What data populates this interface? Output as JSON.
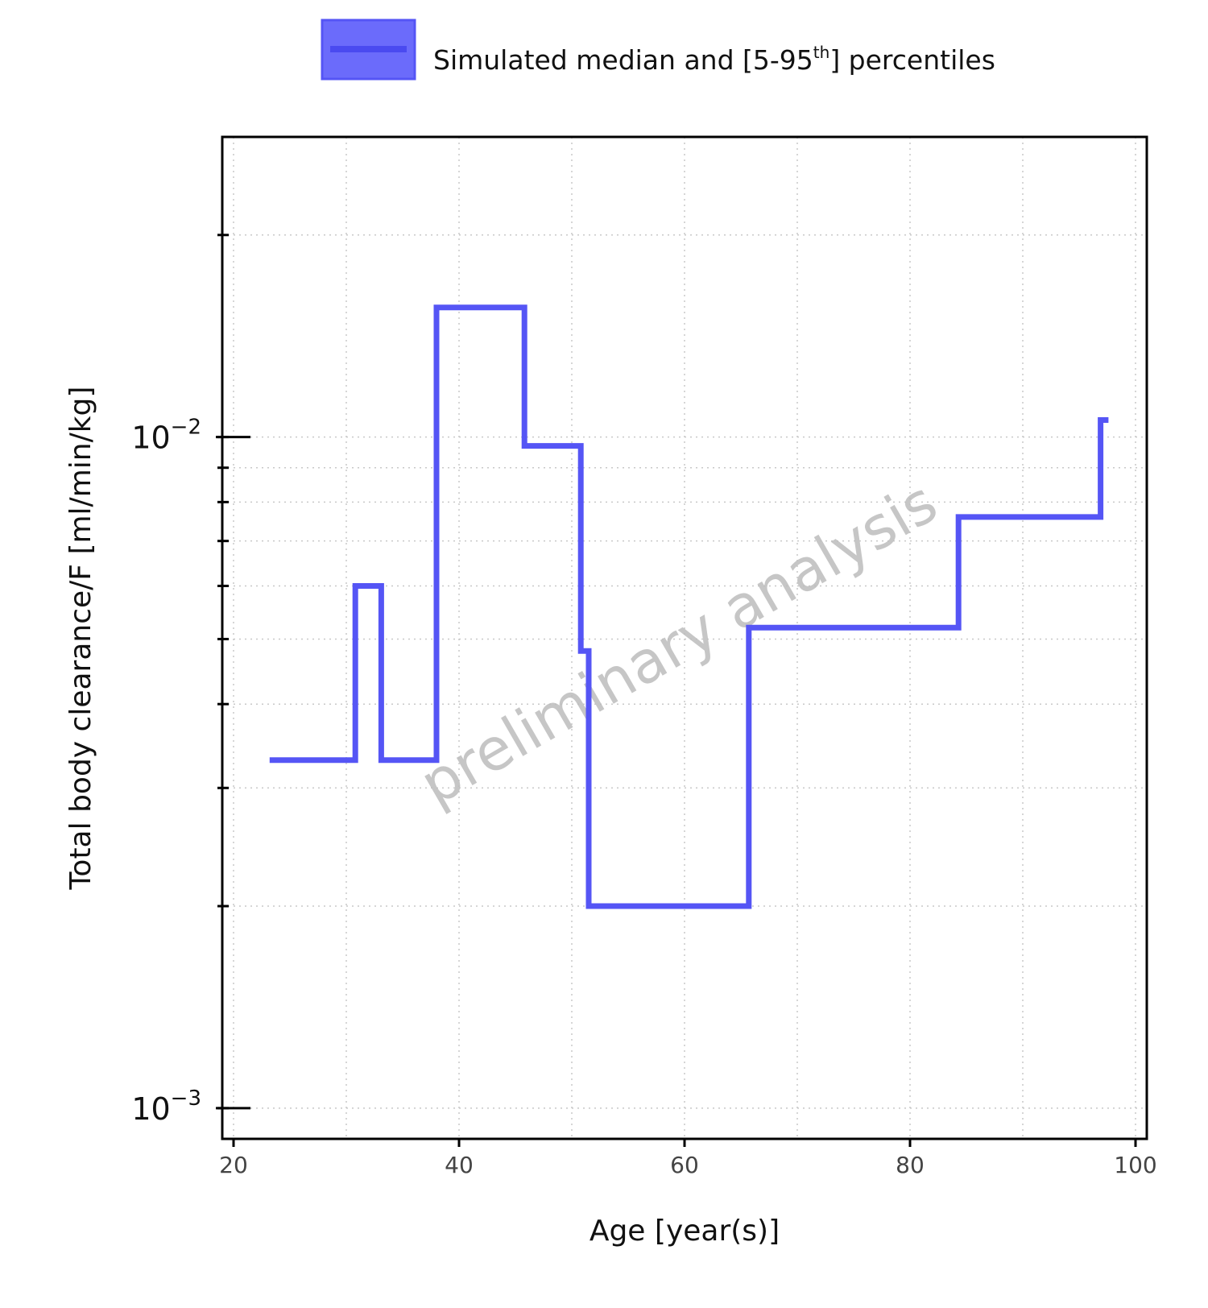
{
  "chart_data": {
    "type": "line",
    "step": true,
    "xlabel": "Age [year(s)]",
    "ylabel": "Total body clearance/F [ml/min/kg]",
    "xlim": [
      19,
      101
    ],
    "ylim": [
      0.0009,
      0.028
    ],
    "yscale": "log",
    "xticks": [
      20,
      40,
      60,
      80,
      100
    ],
    "xtick_labels": [
      "20",
      "40",
      "60",
      "80",
      "100"
    ],
    "yticks": [
      0.001,
      0.01
    ],
    "ytick_labels": [
      {
        "base": "10",
        "exp": "−3",
        "value": 0.001
      },
      {
        "base": "10",
        "exp": "−2",
        "value": 0.01
      }
    ],
    "grid": true,
    "legend": {
      "position": "top",
      "label_prefix": "Simulated median and [5-95",
      "label_sup": "th",
      "label_suffix": "] percentiles"
    },
    "watermark": "preliminary analysis",
    "color": "#5555f5",
    "series": [
      {
        "name": "Simulated median and [5-95th] percentiles",
        "x": [
          23.2,
          30.8,
          30.8,
          33.1,
          33.1,
          38.0,
          38.0,
          45.8,
          45.8,
          50.8,
          50.8,
          51.5,
          51.5,
          65.7,
          65.7,
          84.3,
          84.3,
          96.9,
          96.9,
          97.6
        ],
        "y": [
          0.0033,
          0.0033,
          0.006,
          0.006,
          0.0033,
          0.0033,
          0.0156,
          0.0156,
          0.0097,
          0.0097,
          0.0048,
          0.0048,
          0.002,
          0.002,
          0.0052,
          0.0052,
          0.0076,
          0.0076,
          0.0106,
          0.0106
        ]
      }
    ]
  }
}
